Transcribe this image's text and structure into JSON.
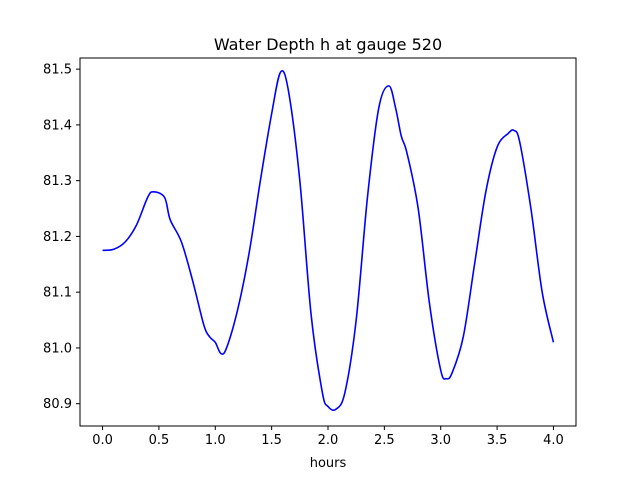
{
  "chart_data": {
    "type": "line",
    "title": "Water Depth h at gauge 520",
    "xlabel": "hours",
    "ylabel": "",
    "xlim": [
      -0.2,
      4.2
    ],
    "ylim": [
      80.86,
      81.52
    ],
    "xticks": [
      0.0,
      0.5,
      1.0,
      1.5,
      2.0,
      2.5,
      3.0,
      3.5,
      4.0
    ],
    "xtick_labels": [
      "0.0",
      "0.5",
      "1.0",
      "1.5",
      "2.0",
      "2.5",
      "3.0",
      "3.5",
      "4.0"
    ],
    "yticks": [
      80.9,
      81.0,
      81.1,
      81.2,
      81.3,
      81.4,
      81.5
    ],
    "ytick_labels": [
      "80.9",
      "81.0",
      "81.1",
      "81.2",
      "81.3",
      "81.4",
      "81.5"
    ],
    "grid": false,
    "series": [
      {
        "color": "#0000ff",
        "x": [
          0.0,
          0.1,
          0.2,
          0.3,
          0.4,
          0.45,
          0.55,
          0.6,
          0.7,
          0.8,
          0.9,
          0.95,
          1.0,
          1.05,
          1.1,
          1.2,
          1.3,
          1.4,
          1.5,
          1.58,
          1.65,
          1.75,
          1.85,
          1.95,
          2.0,
          2.07,
          2.15,
          2.25,
          2.35,
          2.45,
          2.54,
          2.6,
          2.65,
          2.7,
          2.8,
          2.9,
          3.0,
          3.05,
          3.1,
          3.2,
          3.3,
          3.4,
          3.5,
          3.6,
          3.65,
          3.7,
          3.8,
          3.9,
          4.0
        ],
        "y": [
          81.175,
          81.177,
          81.19,
          81.22,
          81.27,
          81.28,
          81.27,
          81.23,
          81.19,
          81.12,
          81.04,
          81.02,
          81.01,
          80.99,
          81.0,
          81.07,
          81.17,
          81.3,
          81.42,
          81.495,
          81.46,
          81.3,
          81.06,
          80.92,
          80.895,
          80.89,
          80.92,
          81.05,
          81.27,
          81.43,
          81.47,
          81.43,
          81.38,
          81.35,
          81.25,
          81.08,
          80.96,
          80.945,
          80.955,
          81.02,
          81.15,
          81.28,
          81.36,
          81.385,
          81.39,
          81.37,
          81.25,
          81.1,
          81.01
        ]
      }
    ]
  }
}
